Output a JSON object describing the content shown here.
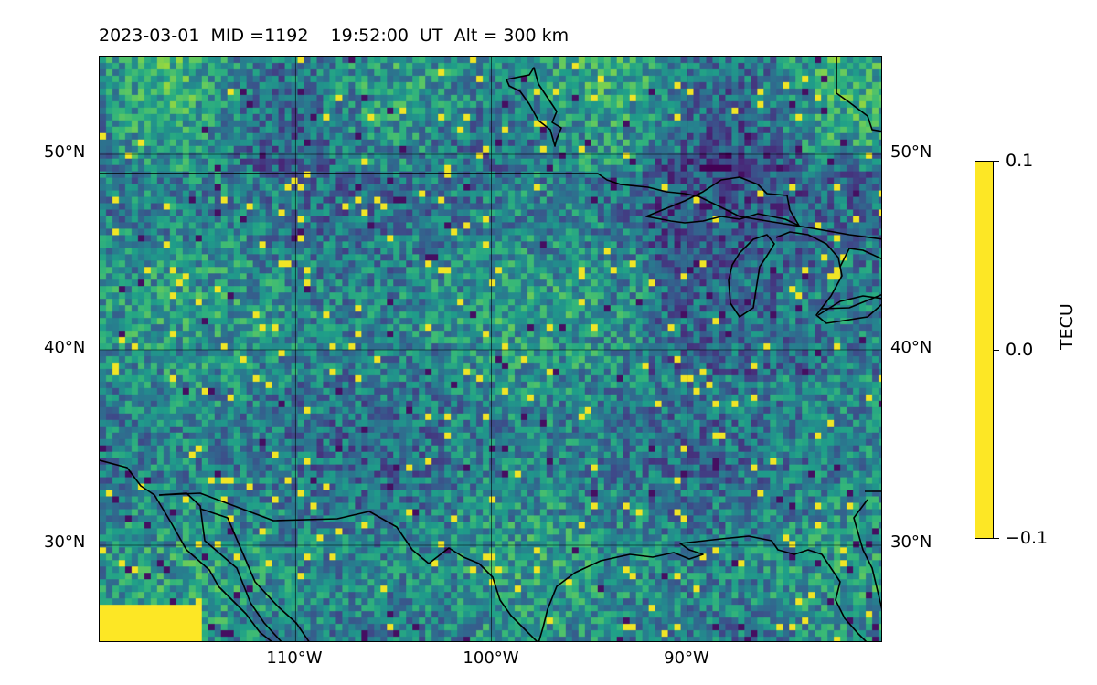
{
  "header": {
    "title": "2023-03-01  MID =1192    19:52:00  UT  Alt = 300 km"
  },
  "map": {
    "projection": "equirectangular",
    "lon_range": [
      -120,
      -80
    ],
    "lat_range": [
      25,
      55
    ],
    "gridlines": {
      "lats": [
        30,
        40,
        50
      ],
      "lons": [
        -110,
        -100,
        -90
      ]
    },
    "lat_labels_left": [
      "30°N",
      "40°N",
      "50°N"
    ],
    "lat_labels_right": [
      "30°N",
      "40°N",
      "50°N"
    ],
    "lon_labels": [
      "110°W",
      "100°W",
      "90°W"
    ],
    "colormap": "viridis",
    "line_color": "#000000",
    "features": [
      "coastlines",
      "US-Canada border",
      "US-Mexico border",
      "Great Lakes",
      "Gulf of California",
      "Hudson Bay shore"
    ]
  },
  "colorbar": {
    "label": "TECU",
    "vmin": -0.1,
    "vmax": 0.1,
    "tick_labels": [
      "0.1",
      "0.0",
      "−0.1"
    ]
  }
}
